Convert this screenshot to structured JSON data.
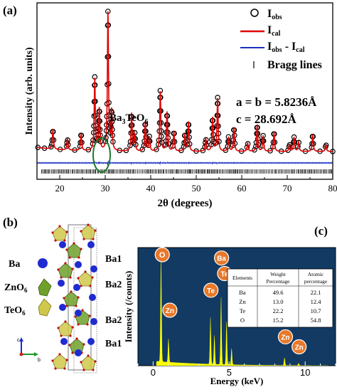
{
  "panel_a": {
    "label": "(a)",
    "lattice_a": "a = b = 5.8236Å",
    "lattice_c": "c = 28.692Å",
    "impurity_label_base": "Ba",
    "impurity_label_sub1": "3",
    "impurity_label_mid": "TeO",
    "impurity_label_sub2": "6",
    "legend": {
      "obs_base": "I",
      "obs_sub": "obs",
      "cal_base": "I",
      "cal_sub": "cal",
      "diff_base": "I",
      "diff_sub1": "obs",
      "diff_mid": " - I",
      "diff_sub2": "cal",
      "bragg": "Bragg lines"
    },
    "colors": {
      "obs": "#000000",
      "cal": "#e00000",
      "diff": "#1a2fc0",
      "bragg": "#000000",
      "ellipse": "#1a7a2a"
    }
  },
  "panel_b": {
    "label": "(b)",
    "legend_ba": "Ba",
    "legend_zno_base": "ZnO",
    "legend_zno_sub": "6",
    "legend_teo_base": "TeO",
    "legend_teo_sub": "6",
    "site_labels": [
      "Ba1",
      "Ba2",
      "Ba2",
      "Ba1"
    ],
    "axis_c": "c",
    "axis_b": "b",
    "colors": {
      "ba": "#1f2bd1",
      "zno": "#6fa02a",
      "teo": "#d0c84a",
      "o": "#c01010"
    }
  },
  "panel_c": {
    "label": "(c)",
    "colors": {
      "background": "#123a63",
      "spectrum": "#ffff00",
      "badge": "#e8782a"
    },
    "table": {
      "headers": [
        "Elements",
        "Weight Percentage",
        "Atomic percentage"
      ],
      "rows": [
        [
          "Ba",
          "49.6",
          "22.1"
        ],
        [
          "Zn",
          "13.0",
          "12.4"
        ],
        [
          "Te",
          "22.2",
          "10.7"
        ],
        [
          "O",
          "15.2",
          "54.8"
        ]
      ]
    }
  },
  "chart_data": [
    {
      "type": "line",
      "xlabel": "2θ (degrees)",
      "ylabel": "Intensity (arb. units)",
      "xlim": [
        15,
        80
      ],
      "xticks": [
        20,
        30,
        40,
        50,
        60,
        70,
        80
      ],
      "legend_position": "top-right",
      "peaks": [
        {
          "x": 18.5,
          "y": 14
        },
        {
          "x": 21.7,
          "y": 8
        },
        {
          "x": 24.7,
          "y": 12
        },
        {
          "x": 27.7,
          "y": 52
        },
        {
          "x": 28.7,
          "y": 30
        },
        {
          "x": 30.6,
          "y": 100
        },
        {
          "x": 31.4,
          "y": 28
        },
        {
          "x": 35.8,
          "y": 27
        },
        {
          "x": 36.5,
          "y": 12
        },
        {
          "x": 38.8,
          "y": 21
        },
        {
          "x": 39.7,
          "y": 10
        },
        {
          "x": 42.1,
          "y": 43
        },
        {
          "x": 43.6,
          "y": 28
        },
        {
          "x": 45.1,
          "y": 14
        },
        {
          "x": 47.5,
          "y": 12
        },
        {
          "x": 48.3,
          "y": 21
        },
        {
          "x": 52.1,
          "y": 9
        },
        {
          "x": 53.6,
          "y": 24
        },
        {
          "x": 54.7,
          "y": 38
        },
        {
          "x": 57.1,
          "y": 10
        },
        {
          "x": 58.3,
          "y": 17
        },
        {
          "x": 61.3,
          "y": 6
        },
        {
          "x": 63.4,
          "y": 19
        },
        {
          "x": 64.7,
          "y": 11
        },
        {
          "x": 67.1,
          "y": 14
        },
        {
          "x": 70.5,
          "y": 5
        },
        {
          "x": 71.5,
          "y": 10
        },
        {
          "x": 72.5,
          "y": 7
        },
        {
          "x": 75.6,
          "y": 12
        },
        {
          "x": 78.5,
          "y": 5
        }
      ],
      "series": [
        {
          "name": "I_obs",
          "style": "open circles"
        },
        {
          "name": "I_cal",
          "style": "red line"
        },
        {
          "name": "I_obs - I_cal",
          "style": "blue line"
        },
        {
          "name": "Bragg lines",
          "style": "ticks"
        }
      ]
    },
    {
      "type": "area",
      "xlabel": "Energy (keV)",
      "ylabel": "Intensity (/counts)",
      "xlim": [
        -1,
        12
      ],
      "xticks": [
        0,
        5,
        10
      ],
      "peaks": [
        {
          "element": "O",
          "x": 0.52,
          "y": 100
        },
        {
          "element": "Zn",
          "x": 1.01,
          "y": 22
        },
        {
          "element": "Te",
          "x": 3.77,
          "y": 44
        },
        {
          "element": "Te",
          "x": 4.03,
          "y": 27
        },
        {
          "element": "Ba",
          "x": 4.47,
          "y": 63
        },
        {
          "element": "Ba",
          "x": 4.83,
          "y": 40
        },
        {
          "element": "Ba",
          "x": 5.16,
          "y": 15
        },
        {
          "element": "Zn",
          "x": 8.64,
          "y": 7
        },
        {
          "element": "Zn",
          "x": 9.57,
          "y": 2
        }
      ],
      "labels": [
        {
          "text": "O",
          "x": 0.6,
          "y": 100
        },
        {
          "text": "Zn",
          "x": 1.1,
          "y": 50
        },
        {
          "text": "Te",
          "x": 3.8,
          "y": 68
        },
        {
          "text": "Ba",
          "x": 4.5,
          "y": 97
        },
        {
          "text": "Te",
          "x": 4.7,
          "y": 83
        },
        {
          "text": "Zn",
          "x": 8.7,
          "y": 26
        },
        {
          "text": "Zn",
          "x": 9.6,
          "y": 17
        }
      ]
    }
  ]
}
